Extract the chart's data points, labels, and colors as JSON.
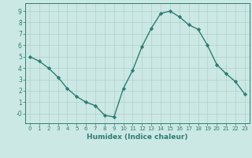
{
  "x": [
    0,
    1,
    2,
    3,
    4,
    5,
    6,
    7,
    8,
    9,
    10,
    11,
    12,
    13,
    14,
    15,
    16,
    17,
    18,
    19,
    20,
    21,
    22,
    23
  ],
  "y": [
    5.0,
    4.6,
    4.0,
    3.2,
    2.2,
    1.5,
    1.0,
    0.7,
    -0.15,
    -0.3,
    2.2,
    3.8,
    5.9,
    7.5,
    8.8,
    9.0,
    8.5,
    7.8,
    7.4,
    6.0,
    4.3,
    3.5,
    2.8,
    1.7
  ],
  "line_color": "#2d7d72",
  "marker": "D",
  "markersize": 2.2,
  "linewidth": 1.0,
  "xlabel": "Humidex (Indice chaleur)",
  "xlabel_fontsize": 6.5,
  "xlim": [
    -0.5,
    23.5
  ],
  "ylim": [
    -0.85,
    9.7
  ],
  "yticks": [
    0,
    1,
    2,
    3,
    4,
    5,
    6,
    7,
    8,
    9
  ],
  "ytick_labels": [
    "-0",
    "1",
    "2",
    "3",
    "4",
    "5",
    "6",
    "7",
    "8",
    "9"
  ],
  "xticks": [
    0,
    1,
    2,
    3,
    4,
    5,
    6,
    7,
    8,
    9,
    10,
    11,
    12,
    13,
    14,
    15,
    16,
    17,
    18,
    19,
    20,
    21,
    22,
    23
  ],
  "tick_fontsize": 5.0,
  "bg_color": "#cce8e4",
  "grid_color": "#aed0cc",
  "tick_color": "#2d7d72",
  "label_color": "#2d7d72",
  "spine_color": "#2d7d72"
}
